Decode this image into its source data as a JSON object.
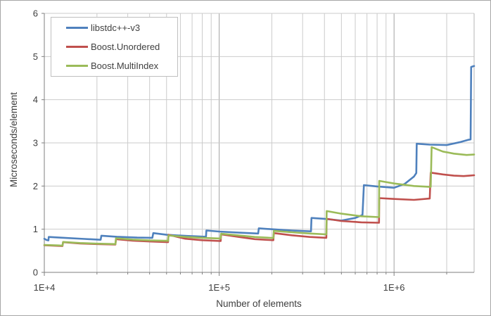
{
  "figure": {
    "background": "#FFFFFF",
    "border_color": "#A6A6A6",
    "text_color": "#3F3F3F",
    "grid_minor_color": "#CBCBCB",
    "grid_major_color": "#A3A3A3",
    "axis_line_color": "#7F7F7F",
    "plot_border_color": "#B5B5B5"
  },
  "chart_data": {
    "type": "line",
    "x_scale": "log",
    "xlabel": "Number of elements",
    "ylabel": "Microseconds/element",
    "xlim": [
      10000,
      2870000
    ],
    "ylim": [
      0,
      6
    ],
    "grid": "both",
    "legend_position": "top-left",
    "x_major_ticks": [
      {
        "label": "1E+4",
        "value": 10000
      },
      {
        "label": "1E+5",
        "value": 100000
      },
      {
        "label": "1E+6",
        "value": 1000000
      }
    ],
    "y_ticks": [
      {
        "label": "0",
        "value": 0
      },
      {
        "label": "1",
        "value": 1
      },
      {
        "label": "2",
        "value": 2
      },
      {
        "label": "3",
        "value": 3
      },
      {
        "label": "4",
        "value": 4
      },
      {
        "label": "5",
        "value": 5
      },
      {
        "label": "6",
        "value": 6
      }
    ],
    "series": [
      {
        "name": "libstdc++-v3",
        "color": "#4F81BD",
        "points": [
          [
            10000,
            0.78
          ],
          [
            10300,
            0.75
          ],
          [
            10550,
            0.74
          ],
          [
            10600,
            0.82
          ],
          [
            13000,
            0.8
          ],
          [
            17000,
            0.775
          ],
          [
            21000,
            0.755
          ],
          [
            21200,
            0.85
          ],
          [
            26000,
            0.825
          ],
          [
            34000,
            0.805
          ],
          [
            41500,
            0.8
          ],
          [
            42000,
            0.91
          ],
          [
            50000,
            0.87
          ],
          [
            65000,
            0.845
          ],
          [
            84000,
            0.825
          ],
          [
            84500,
            0.97
          ],
          [
            100000,
            0.945
          ],
          [
            130000,
            0.92
          ],
          [
            167000,
            0.9
          ],
          [
            168500,
            1.02
          ],
          [
            200000,
            1.0
          ],
          [
            260000,
            0.97
          ],
          [
            335000,
            0.95
          ],
          [
            337000,
            1.26
          ],
          [
            400000,
            1.24
          ],
          [
            500000,
            1.2
          ],
          [
            600000,
            1.26
          ],
          [
            660000,
            1.33
          ],
          [
            672000,
            2.02
          ],
          [
            800000,
            1.99
          ],
          [
            1000000,
            1.96
          ],
          [
            1150000,
            2.05
          ],
          [
            1300000,
            2.22
          ],
          [
            1340000,
            2.3
          ],
          [
            1348000,
            2.98
          ],
          [
            1600000,
            2.96
          ],
          [
            2000000,
            2.95
          ],
          [
            2400000,
            3.02
          ],
          [
            2650000,
            3.07
          ],
          [
            2740000,
            3.08
          ],
          [
            2760000,
            4.76
          ],
          [
            2870000,
            4.78
          ]
        ]
      },
      {
        "name": "Boost.Unordered",
        "color": "#C0504D",
        "points": [
          [
            10000,
            0.63
          ],
          [
            12000,
            0.615
          ],
          [
            12700,
            0.61
          ],
          [
            12800,
            0.7
          ],
          [
            16000,
            0.67
          ],
          [
            20000,
            0.655
          ],
          [
            25500,
            0.645
          ],
          [
            25700,
            0.77
          ],
          [
            32000,
            0.735
          ],
          [
            40000,
            0.715
          ],
          [
            51000,
            0.7
          ],
          [
            51300,
            0.87
          ],
          [
            64000,
            0.78
          ],
          [
            80000,
            0.745
          ],
          [
            102000,
            0.725
          ],
          [
            102500,
            0.88
          ],
          [
            130000,
            0.82
          ],
          [
            160000,
            0.77
          ],
          [
            204000,
            0.745
          ],
          [
            205500,
            0.91
          ],
          [
            260000,
            0.86
          ],
          [
            330000,
            0.82
          ],
          [
            410000,
            0.8
          ],
          [
            412000,
            1.24
          ],
          [
            500000,
            1.19
          ],
          [
            650000,
            1.16
          ],
          [
            820000,
            1.15
          ],
          [
            823000,
            1.72
          ],
          [
            1000000,
            1.7
          ],
          [
            1300000,
            1.68
          ],
          [
            1600000,
            1.71
          ],
          [
            1620000,
            2.31
          ],
          [
            1900000,
            2.27
          ],
          [
            2200000,
            2.24
          ],
          [
            2500000,
            2.23
          ],
          [
            2700000,
            2.24
          ],
          [
            2870000,
            2.25
          ]
        ]
      },
      {
        "name": "Boost.MultiIndex",
        "color": "#9BBB59",
        "points": [
          [
            10000,
            0.635
          ],
          [
            12000,
            0.625
          ],
          [
            12700,
            0.62
          ],
          [
            12800,
            0.705
          ],
          [
            16000,
            0.68
          ],
          [
            20000,
            0.665
          ],
          [
            25500,
            0.655
          ],
          [
            25700,
            0.79
          ],
          [
            32000,
            0.76
          ],
          [
            40000,
            0.74
          ],
          [
            51000,
            0.73
          ],
          [
            51300,
            0.855
          ],
          [
            64000,
            0.82
          ],
          [
            80000,
            0.8
          ],
          [
            102000,
            0.785
          ],
          [
            102500,
            0.895
          ],
          [
            130000,
            0.855
          ],
          [
            160000,
            0.82
          ],
          [
            204000,
            0.795
          ],
          [
            205500,
            0.96
          ],
          [
            260000,
            0.93
          ],
          [
            330000,
            0.9
          ],
          [
            410000,
            0.88
          ],
          [
            412000,
            1.42
          ],
          [
            500000,
            1.36
          ],
          [
            650000,
            1.3
          ],
          [
            820000,
            1.28
          ],
          [
            823000,
            2.12
          ],
          [
            1000000,
            2.06
          ],
          [
            1300000,
            2.0
          ],
          [
            1620000,
            1.98
          ],
          [
            1640000,
            2.9
          ],
          [
            1900000,
            2.8
          ],
          [
            2200000,
            2.75
          ],
          [
            2600000,
            2.72
          ],
          [
            2870000,
            2.73
          ]
        ]
      }
    ]
  }
}
